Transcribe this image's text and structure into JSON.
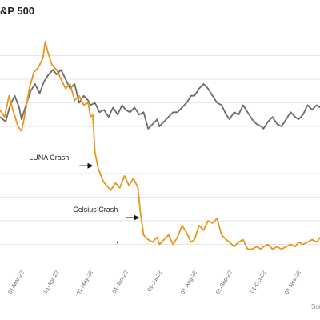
{
  "title": "&P 500",
  "source": "Sou",
  "colors": {
    "grid": "#e6e6e6",
    "series_a": "#6b6b6b",
    "series_b": "#e8961c",
    "text": "#222222",
    "tick": "#666666",
    "arrow": "#111111"
  },
  "chart_data": {
    "type": "line",
    "title": "&P 500",
    "xlabel": "",
    "ylabel": "",
    "grid": true,
    "legend": "none",
    "x_ticks": [
      "01-Mar-22",
      "01-Apr-22",
      "01-May-22",
      "01-Jun-22",
      "01-Jul-22",
      "01-Aug-22",
      "01-Sep-22",
      "01-Oct-22",
      "01-Nov-22"
    ],
    "x_tick_offsets_days": [
      0,
      31,
      61,
      92,
      122,
      153,
      184,
      214,
      245
    ],
    "x_range_days": [
      -19,
      264
    ],
    "ylim": [
      0,
      10
    ],
    "series": [
      {
        "name": "",
        "color": "#6b6b6b",
        "points": [
          [
            -19,
            6.4
          ],
          [
            -14,
            6.2
          ],
          [
            -10,
            6.9
          ],
          [
            -6,
            7.3
          ],
          [
            -2,
            6.8
          ],
          [
            0,
            6.3
          ],
          [
            4,
            6.9
          ],
          [
            8,
            7.5
          ],
          [
            12,
            7.8
          ],
          [
            16,
            7.4
          ],
          [
            20,
            7.9
          ],
          [
            24,
            8.2
          ],
          [
            28,
            8.4
          ],
          [
            31,
            8.2
          ],
          [
            35,
            8.4
          ],
          [
            39,
            8.0
          ],
          [
            43,
            7.6
          ],
          [
            47,
            7.8
          ],
          [
            51,
            7.0
          ],
          [
            55,
            7.3
          ],
          [
            59,
            7.1
          ],
          [
            61,
            6.9
          ],
          [
            65,
            7.0
          ],
          [
            69,
            6.6
          ],
          [
            73,
            6.7
          ],
          [
            77,
            6.4
          ],
          [
            81,
            6.8
          ],
          [
            85,
            6.5
          ],
          [
            89,
            6.9
          ],
          [
            92,
            6.7
          ],
          [
            96,
            6.6
          ],
          [
            100,
            6.8
          ],
          [
            104,
            6.5
          ],
          [
            108,
            6.6
          ],
          [
            112,
            5.9
          ],
          [
            116,
            6.1
          ],
          [
            120,
            6.3
          ],
          [
            122,
            6.0
          ],
          [
            126,
            6.2
          ],
          [
            130,
            6.4
          ],
          [
            134,
            6.6
          ],
          [
            138,
            6.6
          ],
          [
            142,
            6.8
          ],
          [
            146,
            7.0
          ],
          [
            150,
            7.3
          ],
          [
            153,
            7.3
          ],
          [
            157,
            7.6
          ],
          [
            161,
            7.8
          ],
          [
            165,
            7.6
          ],
          [
            169,
            7.3
          ],
          [
            173,
            7.0
          ],
          [
            177,
            6.9
          ],
          [
            181,
            6.5
          ],
          [
            184,
            6.3
          ],
          [
            188,
            6.6
          ],
          [
            192,
            6.5
          ],
          [
            196,
            6.9
          ],
          [
            200,
            6.6
          ],
          [
            204,
            6.3
          ],
          [
            208,
            6.1
          ],
          [
            212,
            6.0
          ],
          [
            214,
            5.9
          ],
          [
            218,
            6.2
          ],
          [
            222,
            6.4
          ],
          [
            226,
            6.1
          ],
          [
            230,
            6.0
          ],
          [
            234,
            6.3
          ],
          [
            238,
            6.6
          ],
          [
            242,
            6.4
          ],
          [
            245,
            6.3
          ],
          [
            249,
            6.5
          ],
          [
            253,
            6.9
          ],
          [
            257,
            6.7
          ],
          [
            261,
            6.9
          ],
          [
            264,
            6.8
          ]
        ]
      },
      {
        "name": "",
        "color": "#e8961c",
        "points": [
          [
            -19,
            6.7
          ],
          [
            -15,
            6.4
          ],
          [
            -11,
            7.3
          ],
          [
            -7,
            6.6
          ],
          [
            -3,
            6.0
          ],
          [
            0,
            5.8
          ],
          [
            3,
            6.5
          ],
          [
            7,
            7.6
          ],
          [
            11,
            8.3
          ],
          [
            15,
            8.5
          ],
          [
            19,
            8.9
          ],
          [
            21,
            9.6
          ],
          [
            23,
            9.2
          ],
          [
            27,
            8.6
          ],
          [
            31,
            8.4
          ],
          [
            35,
            8.0
          ],
          [
            39,
            7.6
          ],
          [
            43,
            7.8
          ],
          [
            47,
            7.1
          ],
          [
            51,
            7.3
          ],
          [
            55,
            6.9
          ],
          [
            59,
            7.0
          ],
          [
            61,
            6.4
          ],
          [
            63,
            6.5
          ],
          [
            64,
            5.7
          ],
          [
            65,
            4.9
          ],
          [
            68,
            4.2
          ],
          [
            72,
            3.7
          ],
          [
            75,
            3.5
          ],
          [
            79,
            3.3
          ],
          [
            83,
            3.6
          ],
          [
            87,
            3.4
          ],
          [
            91,
            3.9
          ],
          [
            95,
            3.5
          ],
          [
            99,
            3.8
          ],
          [
            103,
            3.4
          ],
          [
            105,
            2.4
          ],
          [
            108,
            1.4
          ],
          [
            112,
            1.2
          ],
          [
            116,
            1.1
          ],
          [
            120,
            1.3
          ],
          [
            122,
            1.0
          ],
          [
            126,
            1.2
          ],
          [
            130,
            1.4
          ],
          [
            134,
            1.0
          ],
          [
            138,
            1.3
          ],
          [
            142,
            1.8
          ],
          [
            146,
            1.5
          ],
          [
            150,
            1.1
          ],
          [
            153,
            1.2
          ],
          [
            157,
            1.8
          ],
          [
            161,
            1.6
          ],
          [
            165,
            2.0
          ],
          [
            169,
            1.9
          ],
          [
            173,
            2.1
          ],
          [
            177,
            1.4
          ],
          [
            181,
            1.2
          ],
          [
            184,
            1.1
          ],
          [
            188,
            0.9
          ],
          [
            192,
            1.1
          ],
          [
            196,
            1.2
          ],
          [
            200,
            0.8
          ],
          [
            204,
            0.8
          ],
          [
            208,
            0.9
          ],
          [
            212,
            0.8
          ],
          [
            214,
            0.9
          ],
          [
            218,
            1.0
          ],
          [
            222,
            0.8
          ],
          [
            226,
            0.9
          ],
          [
            230,
            0.8
          ],
          [
            234,
            0.9
          ],
          [
            238,
            1.0
          ],
          [
            242,
            0.9
          ],
          [
            245,
            1.1
          ],
          [
            249,
            1.0
          ],
          [
            253,
            1.1
          ],
          [
            257,
            1.2
          ],
          [
            261,
            1.1
          ],
          [
            264,
            1.3
          ]
        ]
      }
    ],
    "annotations": [
      {
        "text": "LUNA Crash",
        "x": 64,
        "y": 4.4
      },
      {
        "text": "Celsius Crash",
        "x": 105,
        "y": 2.2
      }
    ]
  }
}
